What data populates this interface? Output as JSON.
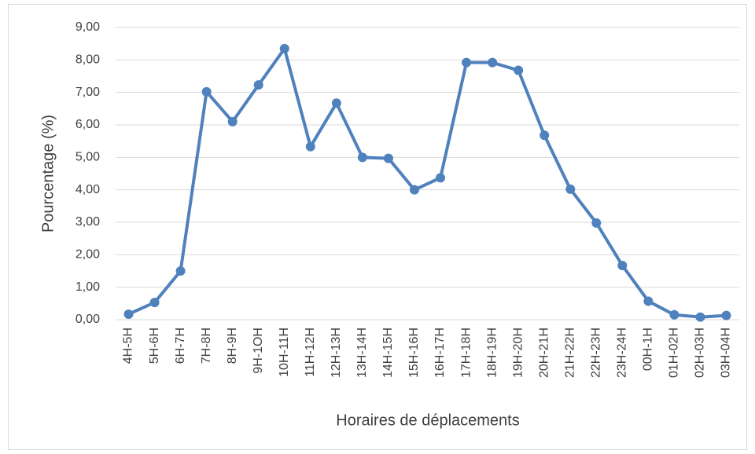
{
  "chart_data": {
    "type": "line",
    "xlabel": "Horaires de déplacements",
    "ylabel": "Pourcentage (%)",
    "categories": [
      "4H-5H",
      "5H-6H",
      "6H-7H",
      "7H-8H",
      "8H-9H",
      "9H-1OH",
      "10H-11H",
      "11H-12H",
      "12H-13H",
      "13H-14H",
      "14H-15H",
      "15H-16H",
      "16H-17H",
      "17H-18H",
      "18H-19H",
      "19H-20H",
      "20H-21H",
      "21H-22H",
      "22H-23H",
      "23H-24H",
      "00H-1H",
      "01H-02H",
      "02H-03H",
      "03H-04H"
    ],
    "series": [
      {
        "color": "#4f81bd",
        "values": [
          0.17,
          0.53,
          1.5,
          7.02,
          6.1,
          7.23,
          8.35,
          5.33,
          6.67,
          5.0,
          4.97,
          4.0,
          4.37,
          7.92,
          7.92,
          7.68,
          5.68,
          4.02,
          2.98,
          1.67,
          0.57,
          0.15,
          0.08,
          0.13
        ]
      }
    ],
    "ylim": [
      0,
      9
    ],
    "yticks": [
      {
        "value": 0,
        "label": "0,00"
      },
      {
        "value": 1,
        "label": "1,00"
      },
      {
        "value": 2,
        "label": "2,00"
      },
      {
        "value": 3,
        "label": "3,00"
      },
      {
        "value": 4,
        "label": "4,00"
      },
      {
        "value": 5,
        "label": "5,00"
      },
      {
        "value": 6,
        "label": "6,00"
      },
      {
        "value": 7,
        "label": "7,00"
      },
      {
        "value": 8,
        "label": "8,00"
      },
      {
        "value": 9,
        "label": "9,00"
      }
    ],
    "grid": true
  }
}
